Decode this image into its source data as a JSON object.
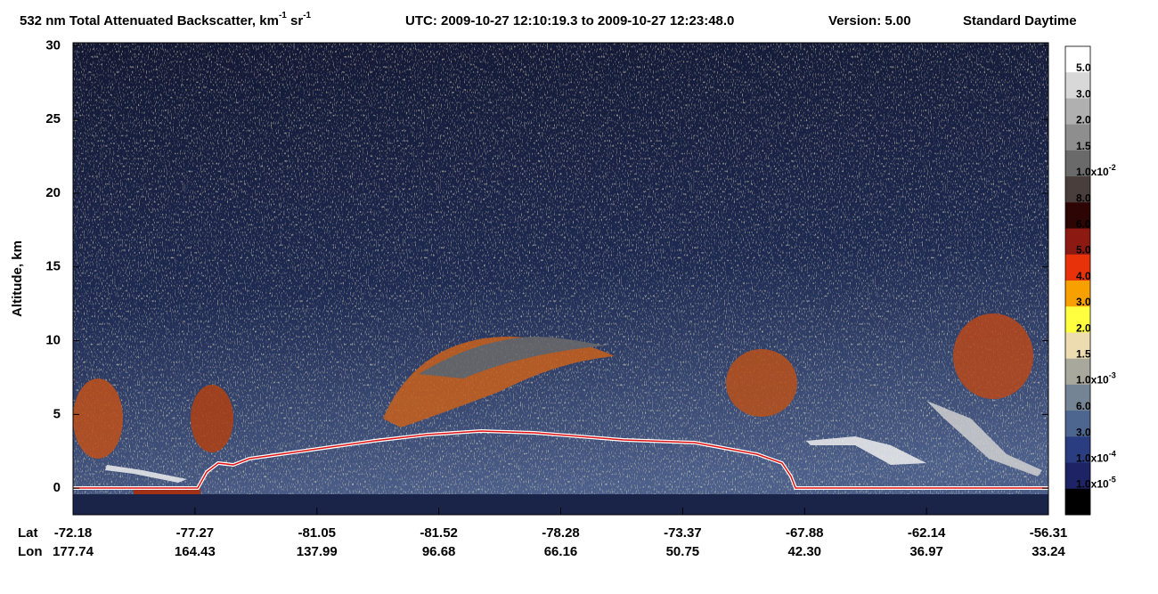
{
  "chart_data": {
    "type": "heatmap",
    "title": {
      "text": "532 nm Total Attenuated Backscatter, km",
      "sup1": "-1",
      "mid": " sr",
      "sup2": "-1"
    },
    "utc": "UTC:  2009-10-27 12:10:19.3  to  2009-10-27 12:23:48.0",
    "version": "Version: 5.00",
    "product": "Standard  Daytime",
    "ylabel": "Altitude, km",
    "ylim": [
      -1.8,
      30.2
    ],
    "yticks": [
      0,
      5,
      10,
      15,
      20,
      25,
      30
    ],
    "x_row_titles": [
      "Lat",
      "Lon"
    ],
    "lat": [
      "-72.18",
      "-77.27",
      "-81.05",
      "-81.52",
      "-78.28",
      "-73.37",
      "-67.88",
      "-62.14",
      "-56.31"
    ],
    "lon": [
      "177.74",
      "164.43",
      "137.99",
      "96.68",
      "66.16",
      "50.75",
      "42.30",
      "36.97",
      "33.24"
    ],
    "colorbar": {
      "colors": [
        "#ffffff",
        "#d8d8d8",
        "#b0b0b0",
        "#8e8e8e",
        "#6a6a6a",
        "#4a3e3c",
        "#2e0505",
        "#8c1a12",
        "#e8320a",
        "#f7a000",
        "#ffff40",
        "#ecdcb0",
        "#a8a89c",
        "#748494",
        "#4c6690",
        "#2a3d80",
        "#1e2366",
        "#000000"
      ],
      "labels": [
        "5.0",
        "3.0",
        "2.0",
        "1.5",
        {
          "text": "1.0x10",
          "sup": "-2"
        },
        "8.0",
        "6.0",
        "5.0",
        "4.0",
        "3.0",
        "2.0",
        "1.5",
        {
          "text": "1.0x10",
          "sup": "-3"
        },
        "6.0",
        "3.0",
        {
          "text": "1.0x10",
          "sup": "-4"
        },
        {
          "text": "1.0x10",
          "sup": "-5"
        }
      ]
    }
  }
}
